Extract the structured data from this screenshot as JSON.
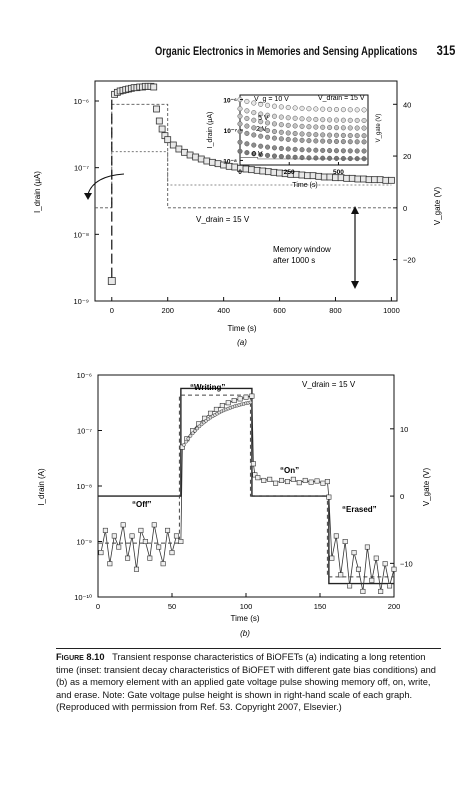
{
  "header": {
    "running_title": "Organic Electronics in Memories and Sensing Applications",
    "page_number": "315"
  },
  "figure_a": {
    "panel_label": "(a)",
    "y_label": "I_drain (μA)",
    "y2_label": "V_gate (V)",
    "x_label": "Time (s)",
    "x_ticks": [
      "0",
      "200",
      "400",
      "600",
      "800",
      "1000"
    ],
    "y_ticks": [
      "10⁻⁹",
      "10⁻⁸",
      "10⁻⁷",
      "10⁻⁶"
    ],
    "y2_ticks": [
      "40",
      "20",
      "0",
      "−20"
    ],
    "annotation_vdrain": "V_drain = 15 V",
    "annotation_memory": [
      "Memory window",
      "after 1000 s"
    ],
    "inset": {
      "y_label": "I_drain (μA)",
      "y2_label": "V_gate (V)",
      "x_label": "Time (s)",
      "x_ticks": [
        "0",
        "250",
        "500"
      ],
      "y_ticks": [
        "10⁻⁶",
        "10⁻⁷",
        "10⁻⁸"
      ],
      "vg_labels": [
        "V_g = 10 V",
        "5 V",
        "2 V",
        "0 V"
      ],
      "vdrain": "V_drain = 15 V"
    }
  },
  "figure_b": {
    "panel_label": "(b)",
    "y_label": "I_drain (A)",
    "y2_label": "V_gate (V)",
    "x_label": "Time (s)",
    "x_ticks": [
      "0",
      "50",
      "100",
      "150",
      "200"
    ],
    "y_ticks": [
      "10⁻⁶",
      "10⁻⁷",
      "10⁻⁸",
      "10⁻⁹",
      "10⁻¹⁰"
    ],
    "y2_ticks": [
      "10",
      "0",
      "−10"
    ],
    "vdrain": "V_drain = 15 V",
    "states": [
      "“Writing”",
      "“On”",
      "“Off”",
      "“Erased”"
    ]
  },
  "caption": {
    "fig_label": "Figure 8.10",
    "text": "Transient response characteristics of BiOFETs (a) indicating a long retention time (inset: transient decay characteristics of BiOFET with different gate bias conditions) and (b) as a memory element with an applied gate voltage pulse showing memory off, on, write, and erase. Note: Gate voltage pulse height is shown in right-hand scale of each graph. (Reproduced with permission from Ref. 53. Copyright 2007, Elsevier.)"
  },
  "chart_data": [
    {
      "type": "scatter",
      "title": "",
      "xlabel": "Time (s)",
      "ylabel": "I_drain (μA)",
      "y2label": "V_gate (V)",
      "xlim": [
        -60,
        1020
      ],
      "ylim_log10": [
        -9,
        -5.7
      ],
      "y2lim": [
        -36,
        49
      ],
      "y_scale": "log",
      "series": [
        {
          "name": "",
          "marker": "open-square",
          "x": [
            0,
            10,
            20,
            30,
            40,
            50,
            60,
            70,
            80,
            90,
            100,
            110,
            120,
            130,
            140,
            150,
            160,
            170,
            180,
            190,
            200,
            220,
            240,
            260,
            280,
            300,
            320,
            340,
            360,
            380,
            400,
            420,
            440,
            460,
            480,
            500,
            520,
            540,
            560,
            580,
            600,
            620,
            640,
            660,
            680,
            700,
            720,
            740,
            760,
            780,
            800,
            820,
            840,
            860,
            880,
            900,
            920,
            940,
            960,
            980,
            1000
          ],
          "y_log10": [
            -8.7,
            -5.9,
            -5.87,
            -5.85,
            -5.84,
            -5.83,
            -5.82,
            -5.81,
            -5.8,
            -5.8,
            -5.79,
            -5.79,
            -5.78,
            -5.78,
            -5.78,
            -5.79,
            -6.12,
            -6.3,
            -6.42,
            -6.52,
            -6.58,
            -6.66,
            -6.72,
            -6.77,
            -6.81,
            -6.84,
            -6.87,
            -6.9,
            -6.92,
            -6.94,
            -6.96,
            -6.98,
            -6.99,
            -7.01,
            -7.02,
            -7.03,
            -7.04,
            -7.05,
            -7.06,
            -7.07,
            -7.08,
            -7.09,
            -7.1,
            -7.1,
            -7.11,
            -7.12,
            -7.12,
            -7.13,
            -7.14,
            -7.14,
            -7.15,
            -7.15,
            -7.16,
            -7.16,
            -7.17,
            -7.17,
            -7.18,
            -7.18,
            -7.18,
            -7.19,
            -7.19
          ]
        },
        {
          "name": "",
          "axis": "V_gate",
          "style": "dashed",
          "x": [
            -60,
            0,
            0,
            200,
            200,
            1020
          ],
          "y": [
            0,
            0,
            40,
            40,
            0,
            0
          ]
        }
      ]
    },
    {
      "type": "line",
      "title": "",
      "xlabel": "Time (s)",
      "ylabel": "I_drain (A)",
      "y2label": "V_gate (V)",
      "xlim": [
        0,
        200
      ],
      "ylim_log10": [
        -10,
        -6
      ],
      "y2lim": [
        -15,
        18
      ],
      "y_scale": "log",
      "series": [
        {
          "name": "",
          "axis": "V_gate",
          "style": "solid",
          "x": [
            0,
            56,
            56,
            104,
            104,
            156,
            156,
            200
          ],
          "y": [
            0,
            0,
            16,
            16,
            0,
            0,
            -13,
            -13
          ]
        },
        {
          "name": "",
          "axis": "V_gate",
          "style": "dashed",
          "x": [
            0,
            55,
            55,
            103,
            103,
            155,
            155,
            200
          ],
          "y": [
            -7,
            -7,
            15,
            15,
            0,
            0,
            -12,
            -12
          ]
        },
        {
          "name": "",
          "marker": "open-square",
          "x": [
            2,
            5,
            8,
            11,
            14,
            17,
            20,
            23,
            26,
            29,
            32,
            35,
            38,
            41,
            44,
            47,
            50,
            53,
            56,
            57,
            60,
            64,
            68,
            72,
            76,
            80,
            84,
            88,
            92,
            96,
            100,
            104,
            105,
            106,
            108,
            112,
            116,
            120,
            124,
            128,
            132,
            136,
            140,
            144,
            148,
            152,
            155,
            156,
            158,
            161,
            164,
            167,
            170,
            173,
            176,
            179,
            182,
            185,
            188,
            191,
            194,
            197,
            200
          ],
          "y_log10": [
            -9.2,
            -8.8,
            -9.4,
            -8.9,
            -9.1,
            -8.7,
            -9.3,
            -8.9,
            -9.5,
            -8.8,
            -9.0,
            -9.3,
            -8.7,
            -9.1,
            -9.4,
            -8.8,
            -9.2,
            -8.9,
            -9.0,
            -7.3,
            -7.15,
            -7.0,
            -6.88,
            -6.78,
            -6.69,
            -6.62,
            -6.55,
            -6.5,
            -6.46,
            -6.43,
            -6.4,
            -6.38,
            -7.6,
            -7.8,
            -7.85,
            -7.9,
            -7.88,
            -7.95,
            -7.9,
            -7.92,
            -7.88,
            -7.94,
            -7.9,
            -7.93,
            -7.91,
            -7.95,
            -7.92,
            -8.2,
            -9.3,
            -8.9,
            -9.6,
            -9.0,
            -9.8,
            -9.2,
            -9.5,
            -9.9,
            -9.1,
            -9.7,
            -9.3,
            -9.9,
            -9.4,
            -9.8,
            -9.5
          ]
        }
      ]
    }
  ]
}
